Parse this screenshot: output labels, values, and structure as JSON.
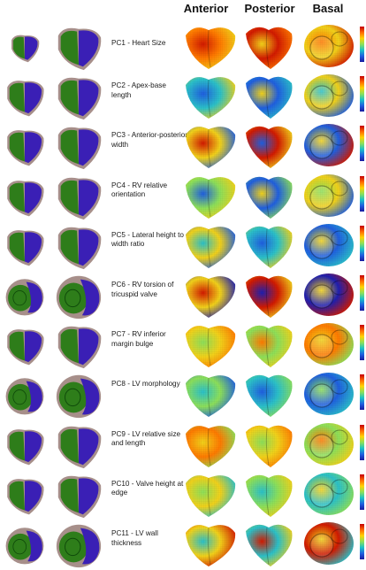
{
  "headers": {
    "anterior": "Anterior",
    "posterior": "Posterior",
    "basal": "Basal"
  },
  "rows": [
    {
      "label": "PC1 - Heart Size"
    },
    {
      "label": "PC2 - Apex-base length"
    },
    {
      "label": "PC3 - Anterior-posterior width"
    },
    {
      "label": "PC4 - RV relative orientation"
    },
    {
      "label": "PC5 - Lateral height to width ratio"
    },
    {
      "label": "PC6 - RV torsion of tricuspid valve"
    },
    {
      "label": "PC7 - RV inferior margin bulge"
    },
    {
      "label": "PC8 - LV morphology"
    },
    {
      "label": "PC9 - LV relative size and length"
    },
    {
      "label": "PC10 - Valve height at edge"
    },
    {
      "label": "PC11 - LV wall thickness"
    }
  ],
  "colors": {
    "lv_green": "#2e7d1a",
    "rv_blue": "#3a1fb5",
    "pericardium": "#a78f8a",
    "heatmap_high": "#d21a00",
    "heatmap_mid": "#f2d21a",
    "heatmap_low": "#1f5fe0"
  }
}
